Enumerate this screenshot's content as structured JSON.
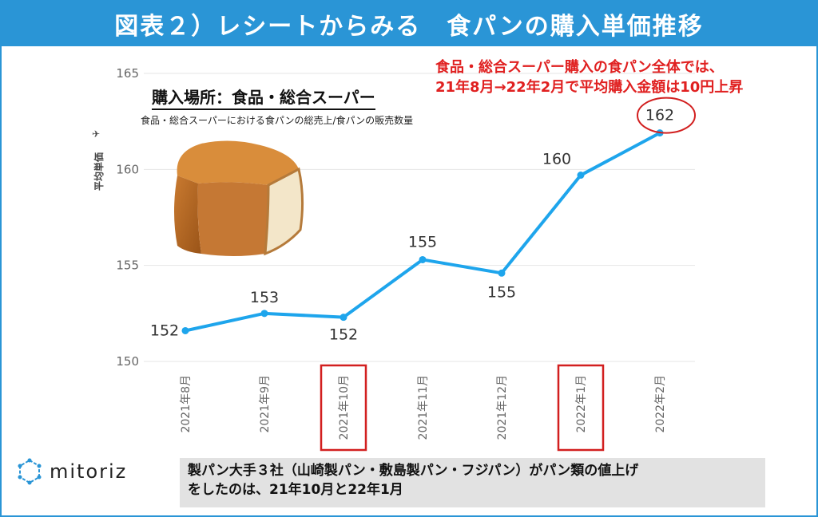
{
  "header": {
    "title": "図表２）レシートからみる　食パンの購入単価推移"
  },
  "callout": {
    "line1": "食品・総合スーパー購入の食パン全体では、",
    "line2": "21年8月→22年2月で平均購入金額は10円上昇"
  },
  "inset": {
    "title": "購入場所：食品・総合スーパー",
    "subtitle": "食品・総合スーパーにおける食パンの総売上/食パンの販売数量"
  },
  "logo": {
    "text": "mitoriz"
  },
  "note": {
    "line1": "製パン大手３社（山崎製パン・敷島製パン・フジパン）がパン類の値上げ",
    "line2": "をしたのは、21年10月と22年1月"
  },
  "colors": {
    "header_bg": "#2a95d6",
    "line": "#1ea5ec",
    "highlight": "#d21f1f",
    "callout_text": "#e02020"
  },
  "chart_data": {
    "type": "line",
    "categories": [
      "2021年8月",
      "2021年9月",
      "2021年10月",
      "2021年11月",
      "2021年12月",
      "2022年1月",
      "2022年2月"
    ],
    "series": [
      {
        "values": [
          151.6,
          152.5,
          152.3,
          155.3,
          154.6,
          159.7,
          161.9
        ]
      }
    ],
    "data_labels": [
      "152",
      "153",
      "152",
      "155",
      "155",
      "160",
      "162"
    ],
    "ylabel": "平均単価",
    "ylim": [
      150,
      165
    ],
    "yticks": [
      150,
      155,
      160,
      165
    ],
    "grid": true,
    "highlighted_categories": [
      "2021年10月",
      "2022年1月"
    ],
    "circled_label": "162"
  }
}
